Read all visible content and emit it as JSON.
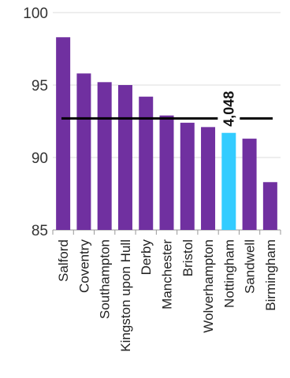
{
  "chart_data": {
    "type": "bar",
    "categories": [
      "Salford",
      "Coventry",
      "Southampton",
      "Kingston upon Hull",
      "Derby",
      "Manchester",
      "Bristol",
      "Wolverhampton",
      "Nottingham",
      "Sandwell",
      "Birmingham"
    ],
    "values": [
      98.3,
      95.8,
      95.2,
      95.0,
      94.2,
      92.9,
      92.4,
      92.1,
      91.7,
      91.3,
      88.3
    ],
    "highlight_index": 8,
    "highlight_label": "4,048",
    "reference_line": 92.7,
    "ylim": [
      85,
      100
    ],
    "yticks": [
      85,
      90,
      95,
      100
    ],
    "title": "",
    "xlabel": "",
    "ylabel": "",
    "grid": true,
    "colors": {
      "bar": "#7030a0",
      "highlight": "#33ccff",
      "reference_line": "#000000",
      "grid": "#dddddd",
      "axis": "#999999"
    }
  }
}
